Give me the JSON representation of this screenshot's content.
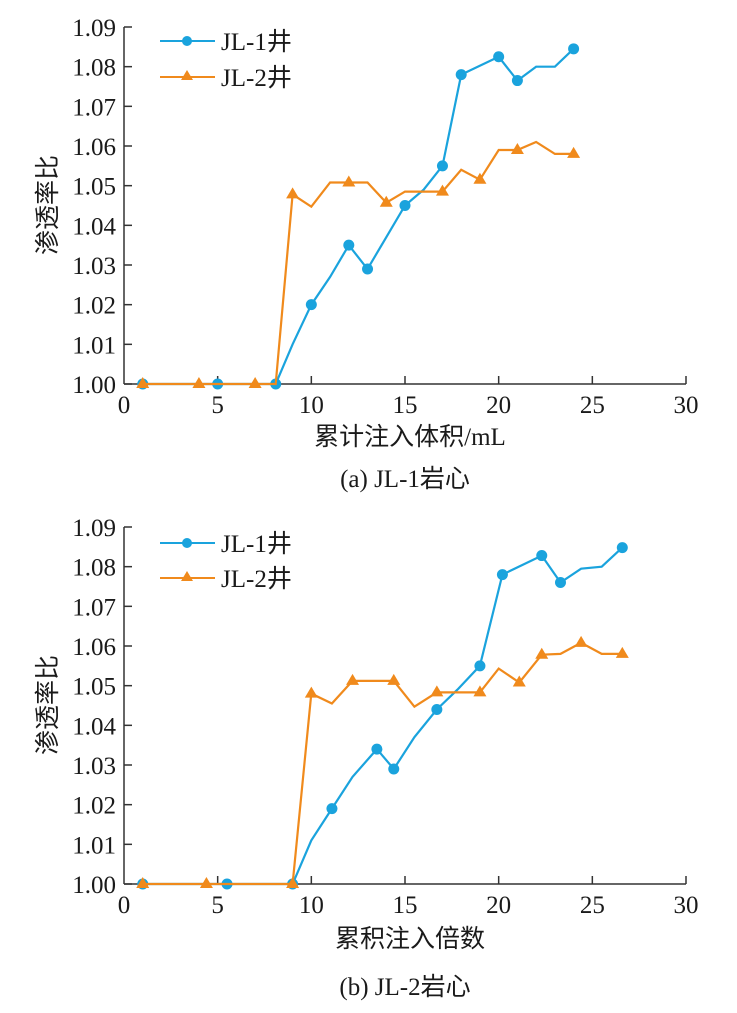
{
  "colors": {
    "jl1": "#1aa3dd",
    "jl2": "#f08a1c",
    "axis": "#333333"
  },
  "chart_data": [
    {
      "type": "line",
      "caption": "(a) JL-1岩心",
      "xlabel": "累计注入体积/mL",
      "ylabel": "渗透率比",
      "xlim": [
        0,
        30
      ],
      "ylim": [
        1.0,
        1.09
      ],
      "xticks": [
        "0",
        "5",
        "10",
        "15",
        "20",
        "25",
        "30"
      ],
      "yticks": [
        "1.00",
        "1.01",
        "1.02",
        "1.03",
        "1.04",
        "1.05",
        "1.06",
        "1.07",
        "1.08",
        "1.09"
      ],
      "legend_position": "top-left",
      "grid": false,
      "series": [
        {
          "name": "JL-1井",
          "marker": "circle",
          "points": [
            [
              1,
              1.0,
              true
            ],
            [
              5,
              1.0,
              true
            ],
            [
              8.1,
              1.0,
              true
            ],
            [
              9,
              1.01,
              false
            ],
            [
              10,
              1.02,
              true
            ],
            [
              11,
              1.027,
              false
            ],
            [
              12,
              1.035,
              true
            ],
            [
              13,
              1.029,
              true
            ],
            [
              14,
              1.037,
              false
            ],
            [
              15,
              1.045,
              true
            ],
            [
              16,
              1.049,
              false
            ],
            [
              17,
              1.055,
              true
            ],
            [
              18,
              1.078,
              true
            ],
            [
              20,
              1.0825,
              true
            ],
            [
              21,
              1.0765,
              true
            ],
            [
              22,
              1.08,
              false
            ],
            [
              23,
              1.08,
              false
            ],
            [
              24,
              1.0845,
              true
            ]
          ]
        },
        {
          "name": "JL-2井",
          "marker": "triangle",
          "points": [
            [
              1,
              1.0,
              true
            ],
            [
              4,
              1.0,
              true
            ],
            [
              7,
              1.0,
              true
            ],
            [
              8.1,
              1.0,
              false
            ],
            [
              9,
              1.0478,
              true
            ],
            [
              10,
              1.0447,
              false
            ],
            [
              11,
              1.0508,
              false
            ],
            [
              12,
              1.0508,
              true
            ],
            [
              13,
              1.0508,
              false
            ],
            [
              14,
              1.0457,
              true
            ],
            [
              15,
              1.0485,
              false
            ],
            [
              17,
              1.0485,
              true
            ],
            [
              18,
              1.054,
              false
            ],
            [
              19,
              1.0515,
              true
            ],
            [
              20,
              1.059,
              false
            ],
            [
              21,
              1.059,
              true
            ],
            [
              22,
              1.061,
              false
            ],
            [
              23,
              1.058,
              false
            ],
            [
              24,
              1.058,
              true
            ]
          ]
        }
      ]
    },
    {
      "type": "line",
      "caption": "(b) JL-2岩心",
      "xlabel": "累积注入倍数",
      "ylabel": "渗透率比",
      "xlim": [
        0,
        30
      ],
      "ylim": [
        1.0,
        1.09
      ],
      "xticks": [
        "0",
        "5",
        "10",
        "15",
        "20",
        "25",
        "30"
      ],
      "yticks": [
        "1.00",
        "1.01",
        "1.02",
        "1.03",
        "1.04",
        "1.05",
        "1.06",
        "1.07",
        "1.08",
        "1.09"
      ],
      "legend_position": "top-left",
      "grid": false,
      "series": [
        {
          "name": "JL-1井",
          "marker": "circle",
          "points": [
            [
              1,
              1.0,
              true
            ],
            [
              5.5,
              1.0,
              true
            ],
            [
              9,
              1.0,
              true
            ],
            [
              10,
              1.011,
              false
            ],
            [
              11.1,
              1.019,
              true
            ],
            [
              12.2,
              1.027,
              false
            ],
            [
              13.5,
              1.034,
              true
            ],
            [
              14.4,
              1.029,
              true
            ],
            [
              15.5,
              1.037,
              false
            ],
            [
              16.7,
              1.044,
              true
            ],
            [
              17.8,
              1.049,
              false
            ],
            [
              19,
              1.055,
              true
            ],
            [
              20.2,
              1.078,
              true
            ],
            [
              22.3,
              1.0828,
              true
            ],
            [
              23.3,
              1.076,
              true
            ],
            [
              24.4,
              1.0795,
              false
            ],
            [
              25.5,
              1.08,
              false
            ],
            [
              26.6,
              1.0848,
              true
            ]
          ]
        },
        {
          "name": "JL-2井",
          "marker": "triangle",
          "points": [
            [
              1,
              1.0,
              true
            ],
            [
              4.4,
              1.0,
              true
            ],
            [
              9,
              1.0,
              true
            ],
            [
              10,
              1.048,
              true
            ],
            [
              11.1,
              1.0455,
              false
            ],
            [
              12.2,
              1.0512,
              true
            ],
            [
              13.3,
              1.0512,
              false
            ],
            [
              14.4,
              1.0512,
              true
            ],
            [
              15.5,
              1.0447,
              false
            ],
            [
              16.7,
              1.0483,
              true
            ],
            [
              17.8,
              1.0483,
              false
            ],
            [
              19,
              1.0483,
              true
            ],
            [
              20,
              1.0543,
              false
            ],
            [
              21.1,
              1.0508,
              true
            ],
            [
              22.3,
              1.0578,
              true
            ],
            [
              23.3,
              1.058,
              false
            ],
            [
              24.4,
              1.0608,
              true
            ],
            [
              25.5,
              1.058,
              false
            ],
            [
              26.6,
              1.058,
              true
            ]
          ]
        }
      ]
    }
  ]
}
